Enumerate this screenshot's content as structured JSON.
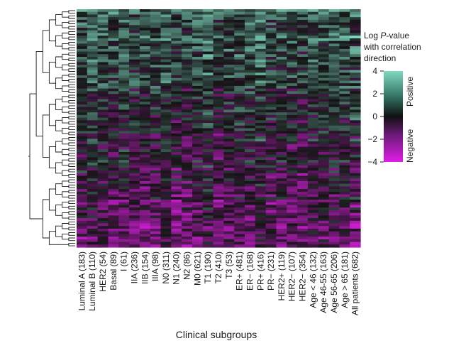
{
  "chart_data": {
    "type": "heatmap",
    "title": "",
    "xlabel": "Clinical subgroups",
    "ylabel": "",
    "columns": [
      "Luminal A (183)",
      "Luminal B (110)",
      "HER2 (54)",
      "Basal (89)",
      "I (61)",
      "IIA (236)",
      "IIB (154)",
      "IIIA (98)",
      "N0 (311)",
      "N1 (240)",
      "N2 (86)",
      "M0 (621)",
      "T1 (190)",
      "T2 (410)",
      "T3 (53)",
      "ER+ (481)",
      "ER− (168)",
      "PR+ (416)",
      "PR− (231)",
      "HER2+ (119)",
      "HER2− (107)",
      "HER2− (354)",
      "Age < 46 (132)",
      "Age 46-55 (163)",
      "Age 56-65 (206)",
      "Age > 65 (181)",
      "All patients (682)"
    ],
    "row_count": 90,
    "row_dendrogram": true,
    "color_scale": {
      "title_line1": "Log ",
      "title_italic": "P",
      "title_line1_rest": "-value",
      "title_line2": "with correlation",
      "title_line3": "direction",
      "min": -4,
      "max": 4,
      "ticks": [
        "4",
        "2",
        "0",
        "−2",
        "−4"
      ],
      "tick_values": [
        4,
        2,
        0,
        -2,
        -4
      ],
      "positive_label": "Positive",
      "negative_label": "Negative",
      "colors": {
        "positive": "#7fd9c0",
        "neutral": "#141414",
        "negative": "#e01ee6"
      }
    }
  }
}
